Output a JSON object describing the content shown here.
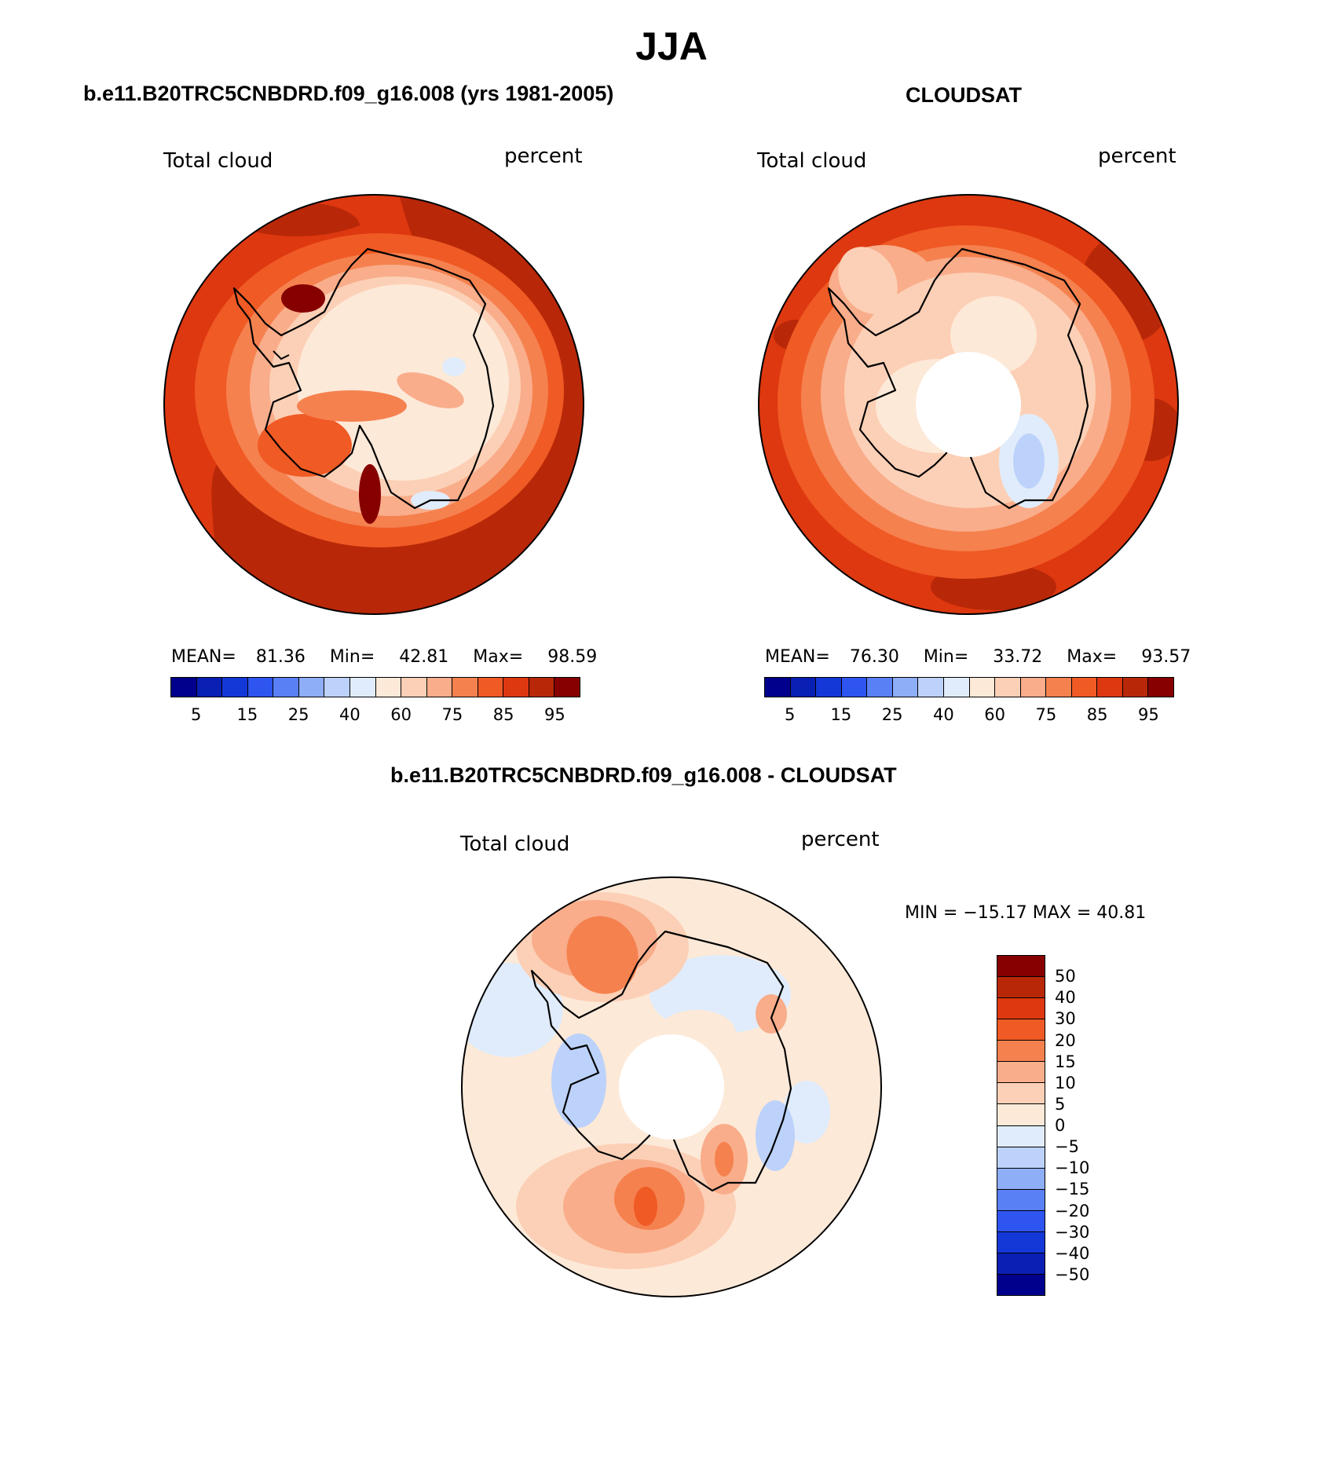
{
  "title": "JJA",
  "panels": [
    {
      "title": "b.e11.B20TRC5CNBDRD.f09_g16.008 (yrs 1981-2005)",
      "left_label": "Total cloud",
      "right_label": "percent",
      "mean_label": "MEAN=",
      "mean": "81.36",
      "min_label": "Min=",
      "min": "42.81",
      "max_label": "Max=",
      "max": "98.59"
    },
    {
      "title": "CLOUDSAT",
      "left_label": "Total cloud",
      "right_label": "percent",
      "mean_label": "MEAN=",
      "mean": "76.30",
      "min_label": "Min=",
      "min": "33.72",
      "max_label": "Max=",
      "max": "93.57"
    },
    {
      "title": "b.e11.B20TRC5CNBDRD.f09_g16.008 - CLOUDSAT",
      "left_label": "Total cloud",
      "right_label": "percent",
      "minmax": "MIN = −15.17 MAX =   40.81"
    }
  ],
  "colorbar_abs": {
    "colors": [
      "#00008c",
      "#0a1fb4",
      "#1438d8",
      "#2e55f0",
      "#5a80f5",
      "#8eaef8",
      "#bcd2fa",
      "#e0ecfb",
      "#fde9d8",
      "#fcd0b6",
      "#f9ad8a",
      "#f5814f",
      "#f05a24",
      "#de3810",
      "#b82808",
      "#870000"
    ],
    "ticks": [
      "5",
      "15",
      "25",
      "40",
      "60",
      "75",
      "85",
      "95"
    ]
  },
  "colorbar_diff": {
    "colors": [
      "#870000",
      "#b82808",
      "#de3810",
      "#f05a24",
      "#f5814f",
      "#f9ad8a",
      "#fcd0b6",
      "#fde9d8",
      "#e0ecfb",
      "#bcd2fa",
      "#8eaef8",
      "#5a80f5",
      "#2e55f0",
      "#1438d8",
      "#0a1fb4",
      "#00008c"
    ],
    "ticks": [
      "50",
      "40",
      "30",
      "20",
      "15",
      "10",
      "5",
      "0",
      "−5",
      "−10",
      "−15",
      "−20",
      "−30",
      "−40",
      "−50"
    ]
  }
}
